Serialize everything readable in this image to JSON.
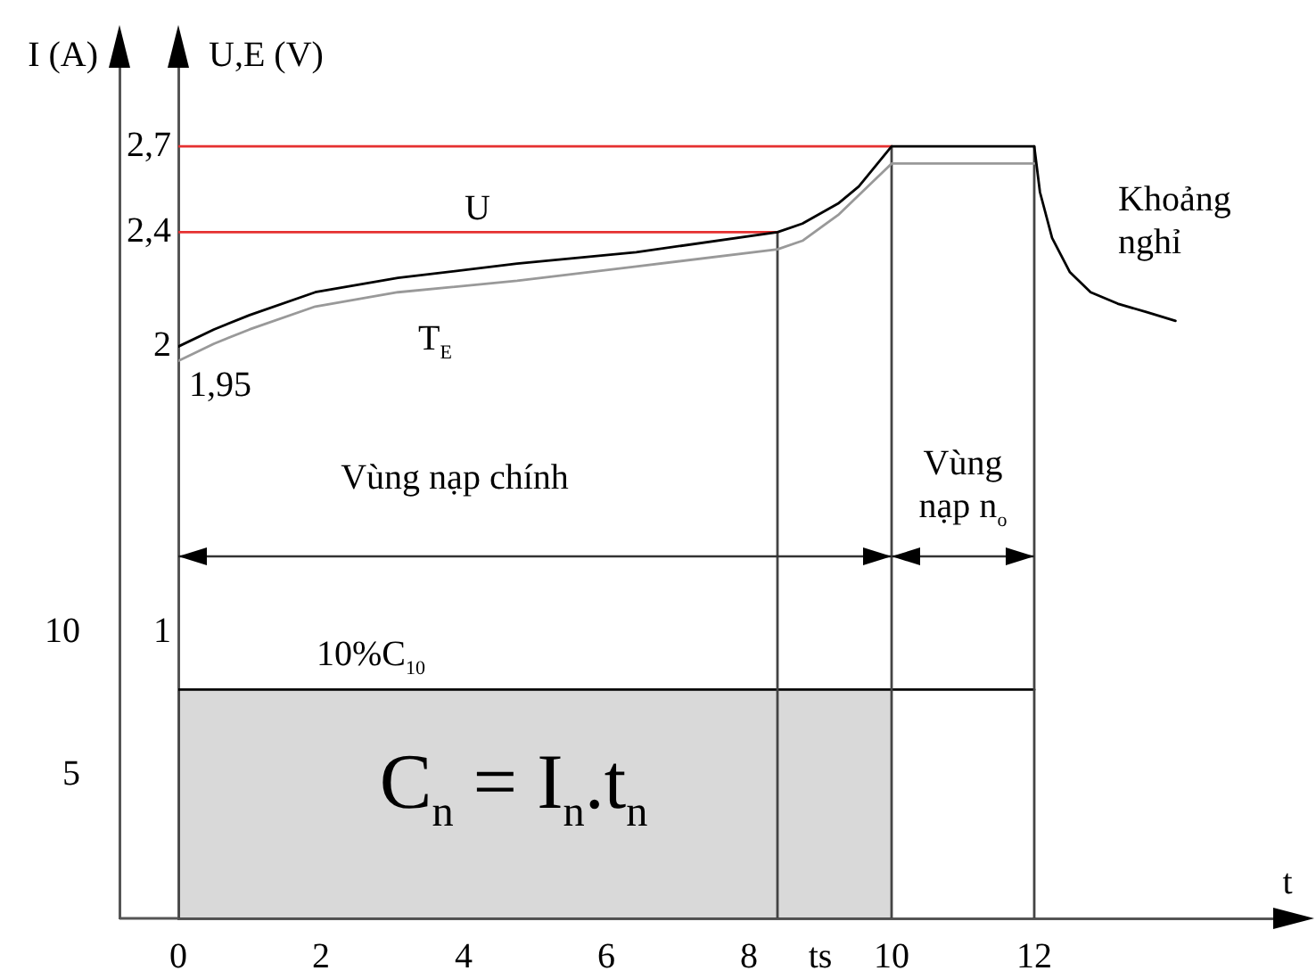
{
  "chart_data": {
    "type": "line",
    "xlabel": "t",
    "ylabel": "I (A)",
    "y2label": "U,E (V)",
    "xlim": [
      0,
      15.6
    ],
    "xticks": [
      0,
      2,
      4,
      6,
      8,
      {
        "value": 9,
        "label": "ts"
      },
      10,
      12
    ],
    "ylim": [
      0,
      30
    ],
    "yticks": [
      5,
      10
    ],
    "y2lim": [
      0,
      3
    ],
    "y2ticks": [
      1,
      2,
      {
        "value": 2.4,
        "label": "2,4"
      },
      {
        "value": 2.7,
        "label": "2,7"
      }
    ],
    "series": [
      {
        "name": "U",
        "color": "#000000",
        "axis": "y2",
        "x": [
          0,
          0.5,
          1,
          1.92,
          3.08,
          4.75,
          6.42,
          8.4,
          8.75,
          9.25,
          9.54,
          10,
          12,
          12.08,
          12.25,
          12.5,
          12.79,
          13.17,
          13.58,
          13.98
        ],
        "values": [
          2.0,
          2.06,
          2.11,
          2.19,
          2.24,
          2.29,
          2.33,
          2.4,
          2.43,
          2.5,
          2.56,
          2.7,
          2.7,
          2.54,
          2.38,
          2.26,
          2.19,
          2.15,
          2.12,
          2.09
        ]
      },
      {
        "name": "T$_{E}$",
        "color": "#999999",
        "axis": "y2",
        "x": [
          0,
          0.5,
          1,
          1.92,
          3.08,
          4.75,
          6.42,
          8.4,
          8.75,
          9.25,
          10,
          12
        ],
        "values": [
          1.95,
          2.01,
          2.06,
          2.14,
          2.19,
          2.23,
          2.28,
          2.34,
          2.37,
          2.46,
          2.64,
          2.64
        ],
        "value_labels": [
          "1,95",
          null,
          null,
          null,
          null,
          null,
          null,
          null,
          null,
          null,
          null,
          null
        ]
      },
      {
        "color": "#e53030",
        "axis": "y2",
        "x": [
          0,
          10
        ],
        "values": [
          2.7,
          2.7
        ]
      },
      {
        "color": "#e53030",
        "axis": "y2",
        "x": [
          0,
          8.4
        ],
        "values": [
          2.4,
          2.4
        ]
      },
      {
        "color": "#444444",
        "axis": "y2",
        "x": [
          8.4,
          8.4
        ],
        "values": [
          0,
          2.4
        ]
      },
      {
        "color": "#444444",
        "axis": "y2",
        "x": [
          10,
          10
        ],
        "values": [
          0,
          2.7
        ]
      },
      {
        "color": "#444444",
        "axis": "y2",
        "x": [
          12,
          12
        ],
        "values": [
          0,
          2.7
        ]
      },
      {
        "color": "#000000",
        "x": [
          0,
          12
        ],
        "values": [
          8,
          8
        ]
      },
      {
        "type": "area",
        "color": "#000000",
        "x": [
          0,
          10
        ],
        "values": [
          8,
          8
        ]
      }
    ],
    "annotations": [
      "Khoảng nghỉ",
      "Vùng nạp chính",
      "Vùng nạp n$_{o}$",
      {
        "text": "10%C$_{10}$",
        "x": 2.7,
        "y": 8
      },
      "C$_{n}$ = I$_{n}$.t$_{n}$"
    ]
  }
}
